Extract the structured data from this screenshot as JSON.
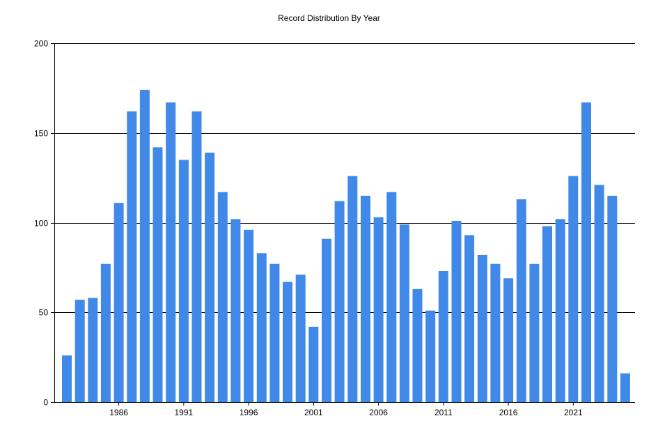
{
  "chart_data": {
    "type": "bar",
    "title": "Record Distribution By Year",
    "xlabel": "",
    "ylabel": "",
    "x": [
      1982,
      1983,
      1984,
      1985,
      1986,
      1987,
      1988,
      1989,
      1990,
      1991,
      1992,
      1993,
      1994,
      1995,
      1996,
      1997,
      1998,
      1999,
      2000,
      2001,
      2002,
      2003,
      2004,
      2005,
      2006,
      2007,
      2008,
      2009,
      2010,
      2011,
      2012,
      2013,
      2014,
      2015,
      2016,
      2017,
      2018,
      2019,
      2020,
      2021,
      2022,
      2023,
      2024,
      2025
    ],
    "values": [
      26,
      57,
      58,
      77,
      111,
      162,
      174,
      142,
      167,
      135,
      162,
      139,
      117,
      102,
      96,
      83,
      77,
      67,
      71,
      42,
      91,
      112,
      126,
      115,
      103,
      117,
      99,
      63,
      51,
      73,
      101,
      93,
      82,
      77,
      69,
      113,
      77,
      98,
      102,
      126,
      167,
      121,
      115,
      16
    ],
    "xticks": [
      "1986",
      "1991",
      "1996",
      "2001",
      "2006",
      "2011",
      "2016",
      "2021"
    ],
    "yticks": [
      "0",
      "50",
      "100",
      "150",
      "200"
    ],
    "ylim": [
      0,
      200
    ],
    "grid": true,
    "legend": "none",
    "colors": {
      "bar": "#4189E8",
      "grid": "#000000",
      "axis": "#000000"
    }
  }
}
